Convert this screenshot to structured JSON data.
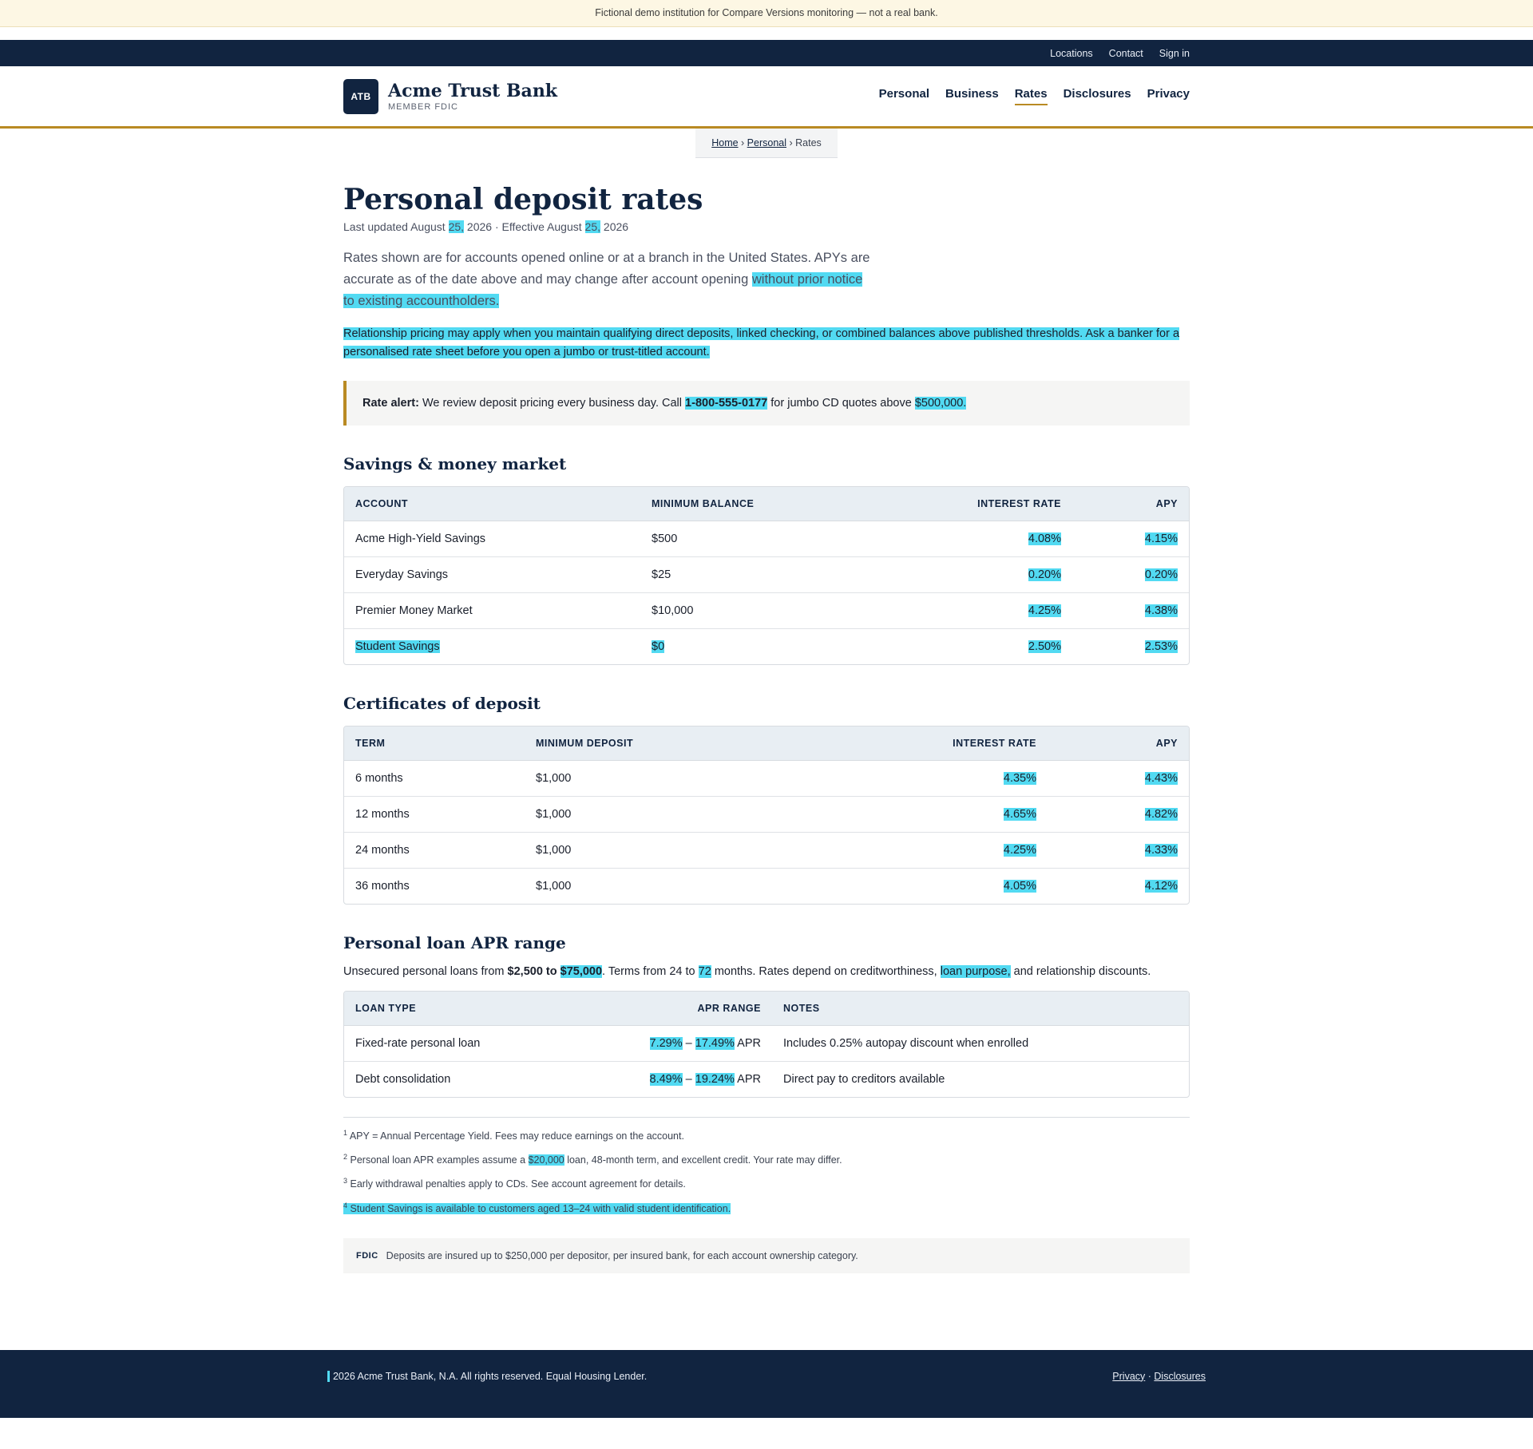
{
  "banner": "Fictional demo institution for Compare Versions monitoring — not a real bank.",
  "utility_nav": [
    "Locations",
    "Contact",
    "Sign in"
  ],
  "brand": {
    "badge": "ATB",
    "name": "Acme Trust Bank",
    "sub": "MEMBER FDIC"
  },
  "main_nav": [
    {
      "label": "Personal",
      "active": false
    },
    {
      "label": "Business",
      "active": false
    },
    {
      "label": "Rates",
      "active": true
    },
    {
      "label": "Disclosures",
      "active": false
    },
    {
      "label": "Privacy",
      "active": false
    }
  ],
  "breadcrumb": {
    "home": "Home",
    "personal": "Personal",
    "current": "Rates"
  },
  "page": {
    "title": "Personal deposit rates",
    "updated_prefix": "Last updated August ",
    "updated_day": "25,",
    "updated_mid": " 2026 · Effective August ",
    "effective_day": "25,",
    "updated_suffix": " 2026",
    "lead_plain": "Rates shown are for accounts opened online or at a branch in the United States. APYs are accurate as of the date above and may change after account opening ",
    "lead_hl": "without prior notice to existing accountholders.",
    "relationship": "Relationship pricing may apply when you maintain qualifying direct deposits, linked checking, or combined balances above published thresholds. Ask a banker for a personalised rate sheet before you open a jumbo or trust-titled account."
  },
  "alert": {
    "label": "Rate alert:",
    "text1": " We review deposit pricing every business day. Call ",
    "phone": "1-800-555-0177",
    "text2": " for jumbo CD quotes above ",
    "amount": "$500,000."
  },
  "savings": {
    "title": "Savings & money market",
    "headers": [
      "ACCOUNT",
      "MINIMUM BALANCE",
      "INTEREST RATE",
      "APY"
    ],
    "rows": [
      {
        "account": "Acme High-Yield Savings",
        "min": "$500",
        "rate": "4.08%",
        "apy": "4.15%"
      },
      {
        "account": "Everyday Savings",
        "min": "$25",
        "rate": "0.20%",
        "apy": "0.20%"
      },
      {
        "account": "Premier Money Market",
        "min": "$10,000",
        "rate": "4.25%",
        "apy": "4.38%"
      },
      {
        "account": "Student Savings",
        "min": "$0",
        "rate": "2.50%",
        "apy": "2.53%"
      }
    ]
  },
  "cds": {
    "title": "Certificates of deposit",
    "headers": [
      "TERM",
      "MINIMUM DEPOSIT",
      "INTEREST RATE",
      "APY"
    ],
    "rows": [
      {
        "term": "6 months",
        "min": "$1,000",
        "rate": "4.35%",
        "apy": "4.43%"
      },
      {
        "term": "12 months",
        "min": "$1,000",
        "rate": "4.65%",
        "apy": "4.82%"
      },
      {
        "term": "24 months",
        "min": "$1,000",
        "rate": "4.25%",
        "apy": "4.33%"
      },
      {
        "term": "36 months",
        "min": "$1,000",
        "rate": "4.05%",
        "apy": "4.12%"
      }
    ]
  },
  "loans": {
    "title": "Personal loan APR range",
    "intro_1": "Unsecured personal loans from ",
    "min_amount": "$2,500 to ",
    "max_amount": "$75,000",
    "intro_2": ". Terms from 24 to ",
    "max_term": "72",
    "intro_3": " months. Rates depend on creditworthiness, ",
    "purpose": "loan purpose,",
    "intro_4": " and relationship discounts.",
    "headers": [
      "LOAN TYPE",
      "APR RANGE",
      "NOTES"
    ],
    "dash": " – ",
    "apr_suffix": " APR",
    "rows": [
      {
        "type": "Fixed-rate personal loan",
        "apr_low": "7.29%",
        "apr_high": "17.49%",
        "notes": "Includes 0.25% autopay discount when enrolled"
      },
      {
        "type": "Debt consolidation",
        "apr_low": "8.49%",
        "apr_high": "19.24%",
        "notes": "Direct pay to creditors available"
      }
    ]
  },
  "footnotes": {
    "f1": "APY = Annual Percentage Yield. Fees may reduce earnings on the account.",
    "f2_a": "Personal loan APR examples assume a ",
    "f2_amt": "$20,000",
    "f2_b": " loan, 48-month term, and excellent credit. Your rate may differ.",
    "f3": "Early withdrawal penalties apply to CDs. See account agreement for details.",
    "f4": "Student Savings is available to customers aged 13–24 with valid student identification."
  },
  "fdic": {
    "label": "FDIC",
    "text": "Deposits are insured up to $250,000 per depositor, per insured bank, for each account ownership category."
  },
  "footer": {
    "copyright": "2026 Acme Trust Bank, N.A. All rights reserved. Equal Housing Lender.",
    "privacy": "Privacy",
    "sep": " · ",
    "disclosures": "Disclosures"
  },
  "colors": {
    "navy": "#112440",
    "gold": "#b98a23",
    "highlight": "#52daf2"
  }
}
